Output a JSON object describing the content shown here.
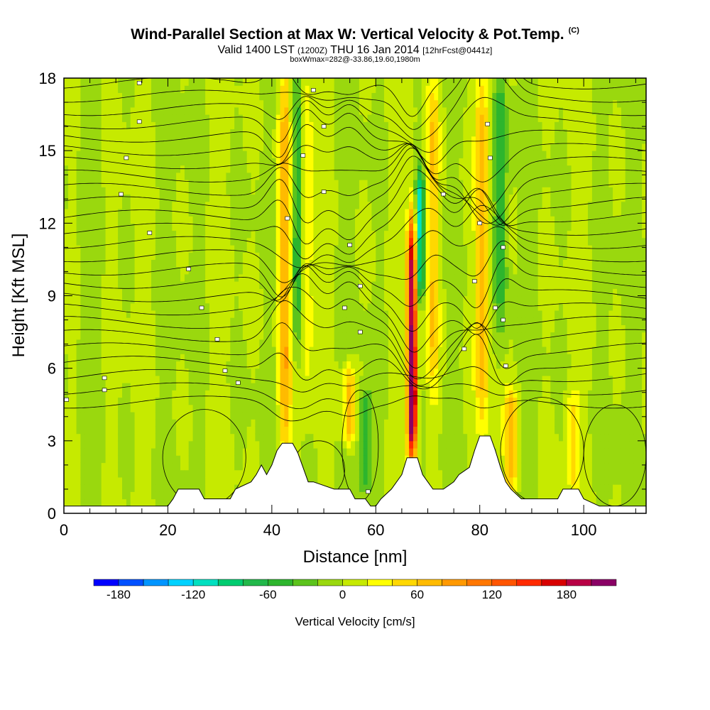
{
  "chart_data": {
    "type": "heatmap",
    "title": "Wind-Parallel Section at Max W: Vertical Velocity & Pot.Temp.",
    "title_mark": "(C)",
    "subtitle_valid": "Valid 1400 LST",
    "subtitle_z": "(1200Z)",
    "subtitle_date": "THU 16 Jan 2014",
    "subtitle_fcst": "[12hrFcst@0441z]",
    "subsubtitle": "boxWmax=282@-33.86,19.60,1980m",
    "xlabel": "Distance [nm]",
    "ylabel": "Height [Kft MSL]",
    "xlim": [
      0,
      112
    ],
    "ylim": [
      0,
      18
    ],
    "x_ticks": [
      "0",
      "20",
      "40",
      "60",
      "80",
      "100"
    ],
    "y_ticks": [
      "0",
      "3",
      "6",
      "9",
      "12",
      "15",
      "18"
    ],
    "colorbar": {
      "label": "Vertical Velocity [cm/s]",
      "ticks": [
        "-180",
        "-120",
        "-60",
        "0",
        "60",
        "120",
        "180"
      ],
      "levels": [
        -200,
        -180,
        -160,
        -140,
        -120,
        -100,
        -80,
        -60,
        -40,
        -20,
        0,
        20,
        40,
        60,
        80,
        100,
        120,
        140,
        160,
        180,
        200,
        220
      ],
      "colors": [
        "#0000ff",
        "#0050ff",
        "#0095ff",
        "#00d2ff",
        "#00e0c0",
        "#00cc70",
        "#22b84a",
        "#2db52d",
        "#5cc31c",
        "#9ad80e",
        "#c6ea00",
        "#ffff00",
        "#ffd800",
        "#ffbb00",
        "#ff9900",
        "#ff7700",
        "#ff5500",
        "#ff2a00",
        "#d80000",
        "#b80045",
        "#8a0065"
      ]
    },
    "w_peak": {
      "x": 67,
      "y": 4.8,
      "value": 282
    },
    "updraft_bands": [
      {
        "x": 42.5,
        "y0": 2.5,
        "y1": 18,
        "w": 80
      },
      {
        "x": 46.5,
        "y0": 6,
        "y1": 18,
        "w": 50
      },
      {
        "x": 55,
        "y0": 3,
        "y1": 6,
        "w": 70
      },
      {
        "x": 67,
        "y0": 2.5,
        "y1": 12,
        "w": 200
      },
      {
        "x": 71,
        "y0": 5,
        "y1": 18,
        "w": 60
      },
      {
        "x": 80.5,
        "y0": 4,
        "y1": 18,
        "w": 70
      },
      {
        "x": 86,
        "y0": 1,
        "y1": 5,
        "w": 70
      },
      {
        "x": 98,
        "y0": 1,
        "y1": 5,
        "w": 40
      }
    ],
    "downdraft_bands": [
      {
        "x": 45,
        "y0": 7,
        "y1": 18,
        "w": -70
      },
      {
        "x": 68.5,
        "y0": 9,
        "y1": 14,
        "w": -110
      },
      {
        "x": 58,
        "y0": 1,
        "y1": 5,
        "w": -60
      },
      {
        "x": 84,
        "y0": 8,
        "y1": 18,
        "w": -60
      }
    ],
    "terrain": [
      [
        0,
        0.3
      ],
      [
        20,
        0.3
      ],
      [
        21,
        0.6
      ],
      [
        22,
        1.0
      ],
      [
        26,
        1.0
      ],
      [
        27,
        0.6
      ],
      [
        32,
        0.6
      ],
      [
        33,
        1.0
      ],
      [
        36,
        1.3
      ],
      [
        37,
        1.6
      ],
      [
        38,
        2.0
      ],
      [
        39,
        1.6
      ],
      [
        40,
        2.0
      ],
      [
        41,
        2.6
      ],
      [
        42,
        2.9
      ],
      [
        44,
        2.9
      ],
      [
        45,
        2.5
      ],
      [
        46,
        1.9
      ],
      [
        47,
        1.3
      ],
      [
        48,
        1.3
      ],
      [
        52,
        1.0
      ],
      [
        55,
        1.0
      ],
      [
        56,
        0.6
      ],
      [
        58,
        0.6
      ],
      [
        59,
        0.3
      ],
      [
        60,
        0.3
      ],
      [
        61,
        0.6
      ],
      [
        63,
        1.0
      ],
      [
        65,
        1.6
      ],
      [
        66,
        2.3
      ],
      [
        68,
        2.3
      ],
      [
        69,
        1.6
      ],
      [
        70,
        1.3
      ],
      [
        71,
        1.0
      ],
      [
        73,
        1.0
      ],
      [
        75,
        1.3
      ],
      [
        76,
        1.6
      ],
      [
        78,
        1.9
      ],
      [
        79,
        2.6
      ],
      [
        80,
        3.2
      ],
      [
        82,
        3.2
      ],
      [
        83,
        2.6
      ],
      [
        84,
        1.9
      ],
      [
        85,
        1.3
      ],
      [
        86,
        1.0
      ],
      [
        88,
        0.6
      ],
      [
        95,
        0.6
      ],
      [
        96,
        1.0
      ],
      [
        99,
        1.0
      ],
      [
        100,
        0.6
      ],
      [
        103,
        0.3
      ],
      [
        112,
        0.3
      ]
    ],
    "theta_labels": [
      {
        "x": 0.5,
        "y": 4.7
      },
      {
        "x": 7.8,
        "y": 5.1
      },
      {
        "x": 7.8,
        "y": 5.6
      },
      {
        "x": 33.5,
        "y": 5.4
      },
      {
        "x": 31,
        "y": 5.9
      },
      {
        "x": 29.5,
        "y": 7.2
      },
      {
        "x": 26.5,
        "y": 8.5
      },
      {
        "x": 24,
        "y": 10.1
      },
      {
        "x": 16.5,
        "y": 11.6
      },
      {
        "x": 11,
        "y": 13.2
      },
      {
        "x": 12,
        "y": 14.7
      },
      {
        "x": 14.5,
        "y": 16.2
      },
      {
        "x": 14.5,
        "y": 17.8
      },
      {
        "x": 48,
        "y": 17.5
      },
      {
        "x": 50,
        "y": 16.0
      },
      {
        "x": 46,
        "y": 14.8
      },
      {
        "x": 50,
        "y": 13.3
      },
      {
        "x": 43,
        "y": 12.2
      },
      {
        "x": 55,
        "y": 11.1
      },
      {
        "x": 57,
        "y": 9.4
      },
      {
        "x": 54,
        "y": 8.5
      },
      {
        "x": 57,
        "y": 7.5
      },
      {
        "x": 73,
        "y": 13.2
      },
      {
        "x": 80,
        "y": 12.0
      },
      {
        "x": 81.5,
        "y": 16.1
      },
      {
        "x": 82,
        "y": 14.7
      },
      {
        "x": 84.5,
        "y": 11.0
      },
      {
        "x": 79,
        "y": 9.6
      },
      {
        "x": 83,
        "y": 8.5
      },
      {
        "x": 84.5,
        "y": 8.0
      },
      {
        "x": 77,
        "y": 6.8
      },
      {
        "x": 85,
        "y": 6.1
      },
      {
        "x": 58.5,
        "y": 0.9
      }
    ]
  }
}
